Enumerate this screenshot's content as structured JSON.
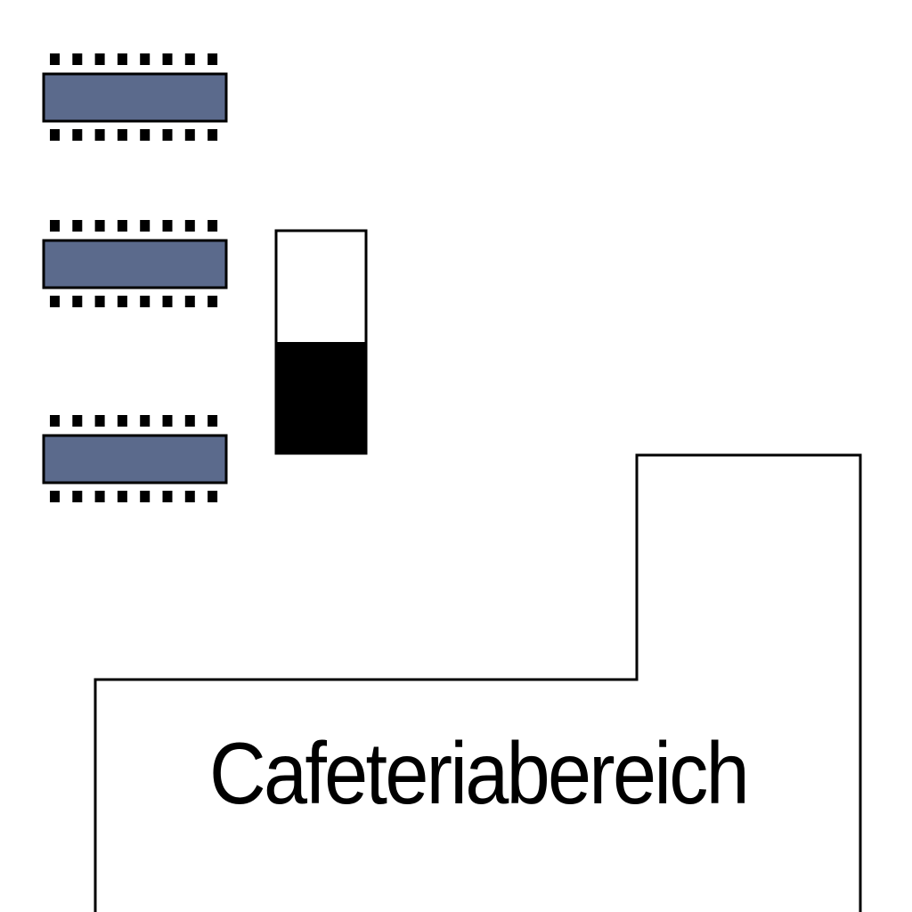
{
  "colors": {
    "table": "#5b6a8c",
    "chair": "#000000",
    "wall": "#000000",
    "background": "#ffffff"
  },
  "floor_plan": {
    "area_label": "Cafeteriabereich",
    "tables": [
      {
        "name": "table-1",
        "seats_top": 8,
        "seats_bottom": 8
      },
      {
        "name": "table-2",
        "seats_top": 8,
        "seats_bottom": 8
      },
      {
        "name": "table-3",
        "seats_top": 8,
        "seats_bottom": 8
      }
    ],
    "cabinet": {
      "fill_level": 0.5
    }
  }
}
